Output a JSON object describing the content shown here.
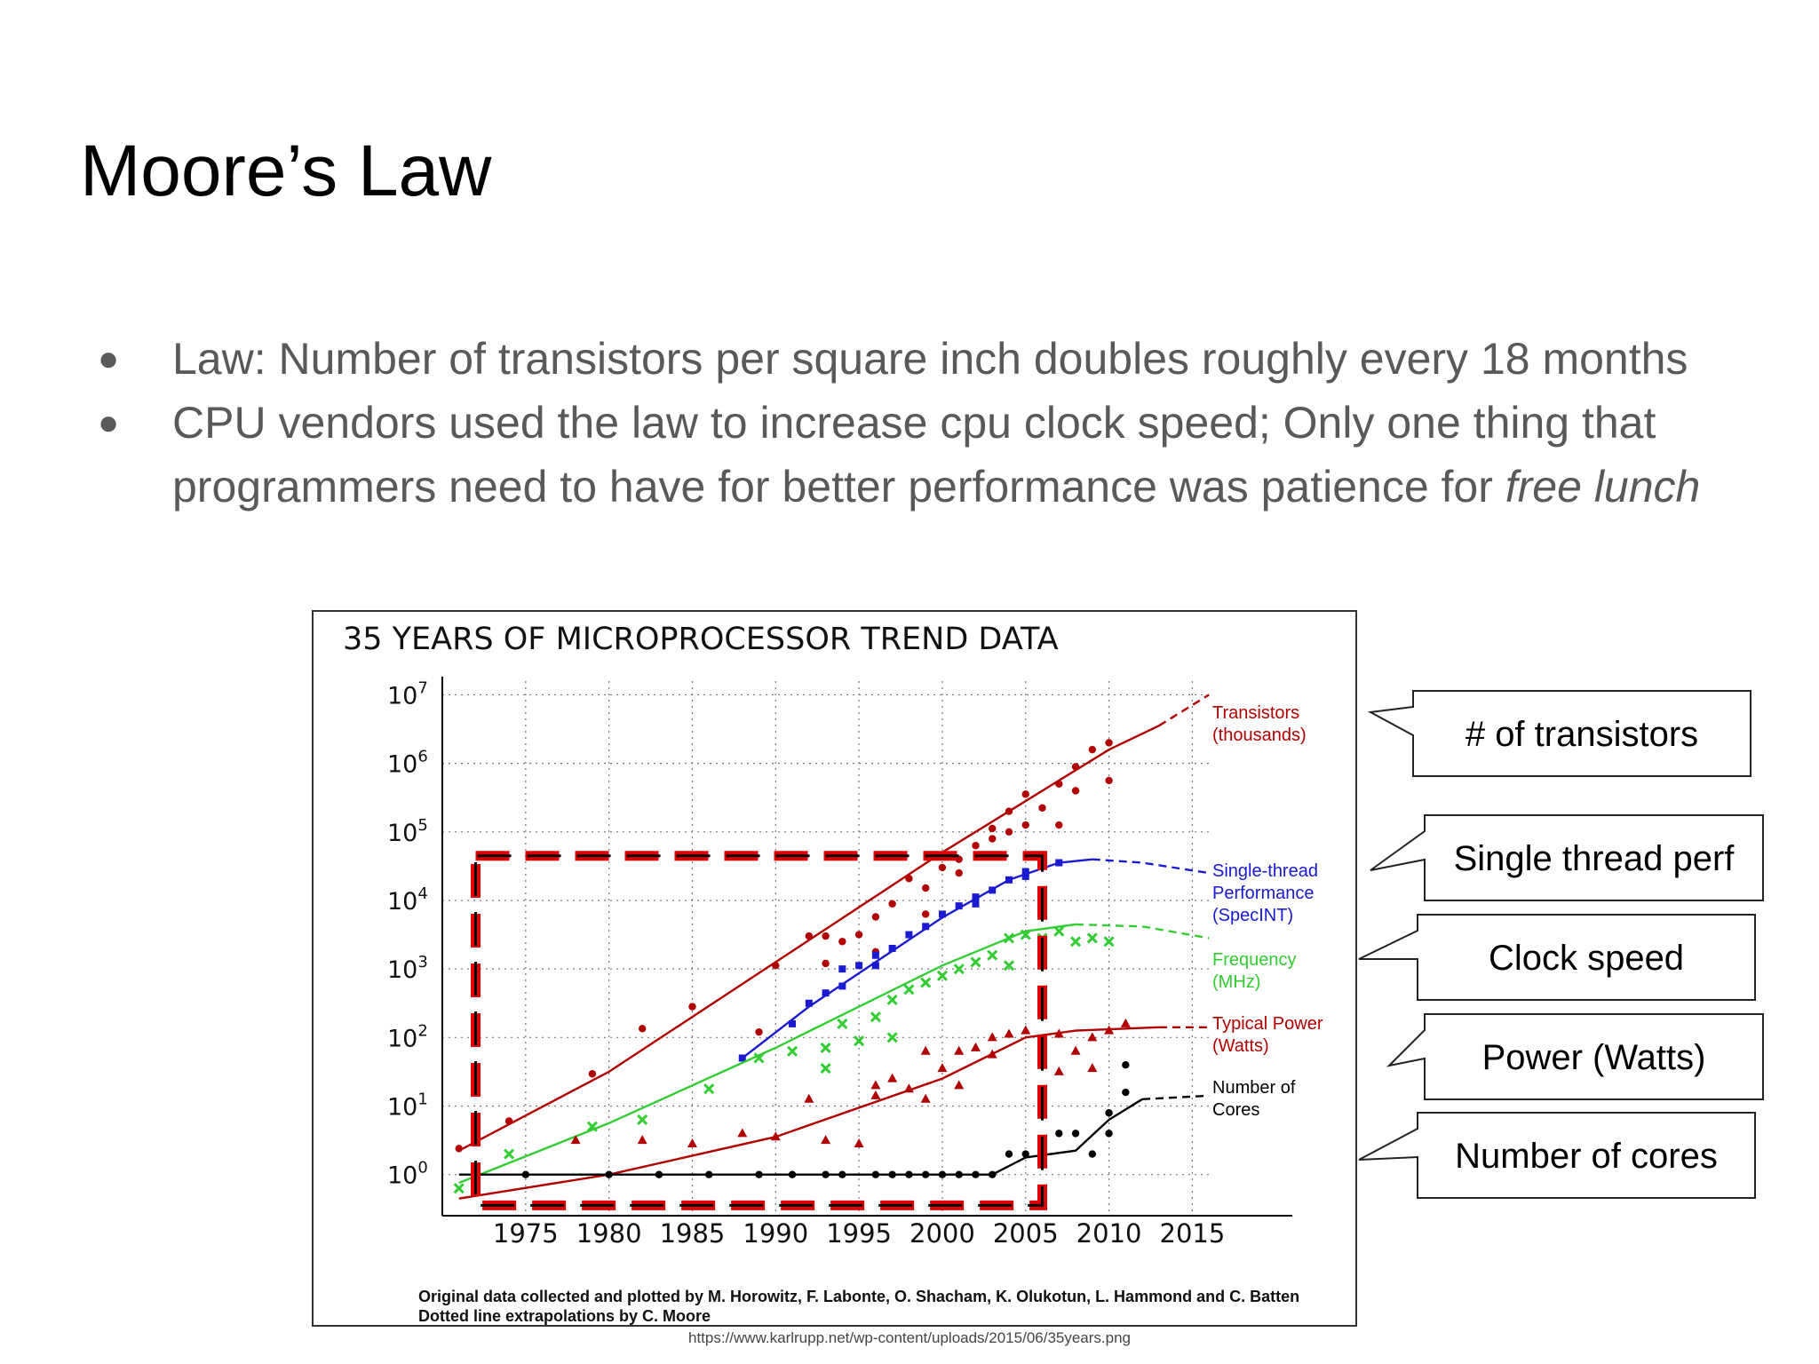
{
  "slide": {
    "title": "Moore’s Law",
    "bullets": [
      {
        "text": "Law: Number of transistors per square inch doubles roughly every 18 months",
        "italic_tail": ""
      },
      {
        "text": "CPU vendors used the law to increase cpu clock speed; Only one thing that programmers need to have for better performance was patience for ",
        "italic_tail": "free lunch"
      }
    ],
    "source_url": "https://www.karlrupp.net/wp-content/uploads/2015/06/35years.png"
  },
  "callouts": [
    {
      "label": "# of transistors"
    },
    {
      "label": "Single thread perf"
    },
    {
      "label": "Clock speed"
    },
    {
      "label": "Power (Watts)"
    },
    {
      "label": "Number of cores"
    }
  ],
  "chart_data": {
    "type": "scatter",
    "title": "35 YEARS OF MICROPROCESSOR TREND DATA",
    "x_ticks": [
      1975,
      1980,
      1985,
      1990,
      1995,
      2000,
      2005,
      2010,
      2015
    ],
    "y_ticks": [
      0,
      1,
      2,
      3,
      4,
      5,
      6,
      7
    ],
    "y_scale": "log",
    "x_range": [
      1970,
      2021
    ],
    "y_range_log10": [
      -0.6,
      7.2
    ],
    "grid": true,
    "highlight_region": {
      "x": [
        1972,
        2006
      ],
      "y_log10": [
        -0.45,
        4.65
      ],
      "color": "#e00000"
    },
    "footnote_lines": [
      "Original data collected and plotted by M. Horowitz, F. Labonte, O. Shacham, K. Olukotun, L. Hammond and C. Batten",
      "Dotted line extrapolations by C. Moore"
    ],
    "series": [
      {
        "name": "Transistors (thousands)",
        "legend_lines": [
          "Transistors",
          "(thousands)"
        ],
        "color": "#b00000",
        "marker": "circle",
        "trend": [
          [
            1971,
            0.35
          ],
          [
            1980,
            1.5
          ],
          [
            1990,
            3.1
          ],
          [
            2000,
            4.7
          ],
          [
            2010,
            6.2
          ],
          [
            2013,
            6.55
          ]
        ],
        "extrapolation": [
          [
            2013,
            6.55
          ],
          [
            2016,
            7.0
          ]
        ],
        "points": [
          [
            1971,
            0.38
          ],
          [
            1974,
            0.78
          ],
          [
            1979,
            1.47
          ],
          [
            1982,
            2.13
          ],
          [
            1985,
            2.45
          ],
          [
            1989,
            2.08
          ],
          [
            1990,
            3.05
          ],
          [
            1992,
            3.48
          ],
          [
            1993,
            3.08
          ],
          [
            1993,
            3.48
          ],
          [
            1994,
            3.4
          ],
          [
            1995,
            3.5
          ],
          [
            1996,
            3.76
          ],
          [
            1997,
            3.95
          ],
          [
            1998,
            4.32
          ],
          [
            1999,
            4.18
          ],
          [
            2000,
            4.48
          ],
          [
            2001,
            4.6
          ],
          [
            2002,
            4.8
          ],
          [
            2003,
            5.05
          ],
          [
            2004,
            5.3
          ],
          [
            2005,
            5.55
          ],
          [
            2006,
            5.35
          ],
          [
            2007,
            5.7
          ],
          [
            2008,
            5.95
          ],
          [
            2009,
            6.2
          ],
          [
            2010,
            6.3
          ],
          [
            2003,
            4.9
          ],
          [
            2005,
            5.1
          ],
          [
            2007,
            5.1
          ],
          [
            2008,
            5.6
          ],
          [
            2010,
            5.75
          ],
          [
            1996,
            3.25
          ],
          [
            1999,
            3.8
          ],
          [
            2001,
            4.4
          ],
          [
            2004,
            5.0
          ]
        ]
      },
      {
        "name": "Single-thread Performance (SpecINT)",
        "legend_lines": [
          "Single-thread",
          "Performance",
          "(SpecINT)"
        ],
        "color": "#1a1ad0",
        "marker": "square",
        "trend": [
          [
            1988,
            1.7
          ],
          [
            1992,
            2.45
          ],
          [
            1996,
            3.1
          ],
          [
            2000,
            3.75
          ],
          [
            2004,
            4.3
          ],
          [
            2007,
            4.55
          ],
          [
            2009,
            4.6
          ]
        ],
        "extrapolation": [
          [
            2009,
            4.6
          ],
          [
            2012,
            4.55
          ],
          [
            2016,
            4.4
          ]
        ],
        "points": [
          [
            1988,
            1.7
          ],
          [
            1991,
            2.2
          ],
          [
            1992,
            2.5
          ],
          [
            1993,
            2.65
          ],
          [
            1994,
            2.75
          ],
          [
            1995,
            3.05
          ],
          [
            1996,
            3.2
          ],
          [
            1997,
            3.3
          ],
          [
            1998,
            3.5
          ],
          [
            1999,
            3.62
          ],
          [
            2000,
            3.8
          ],
          [
            2001,
            3.92
          ],
          [
            2002,
            4.05
          ],
          [
            2003,
            4.15
          ],
          [
            2004,
            4.3
          ],
          [
            2005,
            4.35
          ],
          [
            2006,
            4.5
          ],
          [
            2007,
            4.55
          ],
          [
            1994,
            3.0
          ],
          [
            1996,
            3.05
          ],
          [
            2002,
            3.95
          ],
          [
            2005,
            4.42
          ]
        ]
      },
      {
        "name": "Frequency (MHz)",
        "legend_lines": [
          "Frequency",
          "(MHz)"
        ],
        "color": "#33cc33",
        "marker": "x",
        "trend": [
          [
            1971,
            -0.12
          ],
          [
            1980,
            0.75
          ],
          [
            1990,
            1.85
          ],
          [
            2000,
            3.05
          ],
          [
            2005,
            3.55
          ],
          [
            2008,
            3.65
          ]
        ],
        "extrapolation": [
          [
            2008,
            3.65
          ],
          [
            2012,
            3.62
          ],
          [
            2016,
            3.45
          ]
        ],
        "points": [
          [
            1971,
            -0.2
          ],
          [
            1974,
            0.3
          ],
          [
            1979,
            0.7
          ],
          [
            1982,
            0.8
          ],
          [
            1986,
            1.25
          ],
          [
            1989,
            1.7
          ],
          [
            1991,
            1.8
          ],
          [
            1993,
            1.85
          ],
          [
            1994,
            2.2
          ],
          [
            1996,
            2.3
          ],
          [
            1997,
            2.55
          ],
          [
            1998,
            2.7
          ],
          [
            1999,
            2.8
          ],
          [
            2000,
            2.9
          ],
          [
            2001,
            3.0
          ],
          [
            2002,
            3.1
          ],
          [
            2003,
            3.2
          ],
          [
            2004,
            3.45
          ],
          [
            2005,
            3.5
          ],
          [
            2006,
            3.45
          ],
          [
            2007,
            3.55
          ],
          [
            2008,
            3.4
          ],
          [
            2009,
            3.45
          ],
          [
            2010,
            3.4
          ],
          [
            1995,
            1.95
          ],
          [
            1997,
            2.0
          ],
          [
            1993,
            1.55
          ],
          [
            2004,
            3.05
          ],
          [
            2006,
            3.3
          ]
        ]
      },
      {
        "name": "Typical Power (Watts)",
        "legend_lines": [
          "Typical Power",
          "(Watts)"
        ],
        "color": "#b00000",
        "marker": "triangle",
        "trend": [
          [
            1971,
            -0.35
          ],
          [
            1980,
            0.0
          ],
          [
            1990,
            0.55
          ],
          [
            2000,
            1.4
          ],
          [
            2005,
            2.0
          ],
          [
            2008,
            2.1
          ],
          [
            2013,
            2.15
          ]
        ],
        "extrapolation": [
          [
            2013,
            2.15
          ],
          [
            2016,
            2.15
          ]
        ],
        "points": [
          [
            1972,
            -0.1
          ],
          [
            1978,
            0.5
          ],
          [
            1982,
            0.5
          ],
          [
            1985,
            0.45
          ],
          [
            1988,
            0.6
          ],
          [
            1990,
            0.55
          ],
          [
            1992,
            1.1
          ],
          [
            1993,
            0.5
          ],
          [
            1995,
            0.45
          ],
          [
            1996,
            1.15
          ],
          [
            1997,
            1.4
          ],
          [
            1998,
            1.25
          ],
          [
            1999,
            1.8
          ],
          [
            2000,
            1.55
          ],
          [
            2001,
            1.8
          ],
          [
            2002,
            1.85
          ],
          [
            2003,
            2.0
          ],
          [
            2004,
            2.05
          ],
          [
            2005,
            2.1
          ],
          [
            2006,
            1.85
          ],
          [
            2007,
            2.05
          ],
          [
            2008,
            1.8
          ],
          [
            2009,
            2.0
          ],
          [
            2010,
            2.1
          ],
          [
            2011,
            2.2
          ],
          [
            1999,
            1.1
          ],
          [
            2001,
            1.3
          ],
          [
            2007,
            1.5
          ],
          [
            2009,
            1.55
          ],
          [
            1996,
            1.3
          ],
          [
            2003,
            1.75
          ]
        ]
      },
      {
        "name": "Number of Cores",
        "legend_lines": [
          "Number of",
          "Cores"
        ],
        "color": "#000000",
        "marker": "circle",
        "trend": [
          [
            1971,
            0.0
          ],
          [
            2003,
            0.0
          ],
          [
            2005,
            0.25
          ],
          [
            2008,
            0.35
          ],
          [
            2010,
            0.8
          ],
          [
            2012,
            1.1
          ]
        ],
        "extrapolation": [
          [
            2012,
            1.1
          ],
          [
            2016,
            1.15
          ]
        ],
        "points": [
          [
            1972,
            0.0
          ],
          [
            1975,
            0.0
          ],
          [
            1980,
            0.0
          ],
          [
            1983,
            0.0
          ],
          [
            1986,
            0.0
          ],
          [
            1989,
            0.0
          ],
          [
            1991,
            0.0
          ],
          [
            1993,
            0.0
          ],
          [
            1994,
            0.0
          ],
          [
            1996,
            0.0
          ],
          [
            1997,
            0.0
          ],
          [
            1998,
            0.0
          ],
          [
            1999,
            0.0
          ],
          [
            2000,
            0.0
          ],
          [
            2001,
            0.0
          ],
          [
            2002,
            0.0
          ],
          [
            2003,
            0.0
          ],
          [
            2004,
            0.3
          ],
          [
            2005,
            0.3
          ],
          [
            2006,
            0.3
          ],
          [
            2007,
            0.6
          ],
          [
            2008,
            0.6
          ],
          [
            2009,
            0.3
          ],
          [
            2010,
            0.6
          ],
          [
            2010,
            0.9
          ],
          [
            2011,
            1.2
          ],
          [
            2011,
            1.6
          ]
        ]
      }
    ]
  }
}
